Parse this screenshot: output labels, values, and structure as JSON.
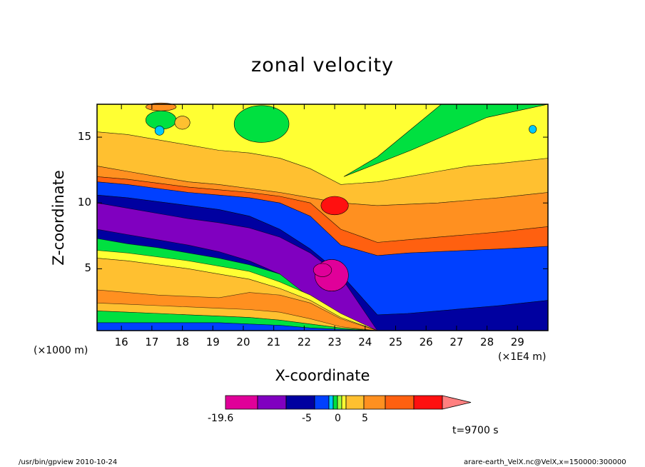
{
  "title": "zonal velocity",
  "xlabel": "X-coordinate",
  "ylabel": "Z-coordinate",
  "x_unit": "(×1E4 m)",
  "y_unit": "(×1000 m)",
  "time_label": "t=9700 s",
  "footer_left": "/usr/bin/gpview   2010-10-24",
  "footer_right": "arare-earth_VelX.nc@VelX,x=150000:300000",
  "colorbar": {
    "colors": [
      "#e00099",
      "#8000c0",
      "#0000a0",
      "#0040ff",
      "#00c8ff",
      "#00e040",
      "#a0ff40",
      "#ffff33",
      "#ffc030",
      "#ff9020",
      "#ff6010",
      "#ff1010",
      "#ff8080"
    ],
    "tick_labels": [
      "-19.6",
      "-5",
      "0",
      "5"
    ]
  },
  "chart_data": {
    "type": "heatmap",
    "title": "zonal velocity",
    "xlabel": "X-coordinate",
    "ylabel": "Z-coordinate",
    "x_unit": "×1E4 m",
    "y_unit": "×1000 m",
    "xlim": [
      15.2,
      30.0
    ],
    "ylim": [
      0.3,
      17.5
    ],
    "x_ticks": [
      16,
      17,
      18,
      19,
      20,
      21,
      22,
      23,
      24,
      25,
      26,
      27,
      28,
      29
    ],
    "y_ticks": [
      5,
      10,
      15
    ],
    "colorbar_ticks": [
      -19.6,
      -5,
      0,
      5
    ],
    "layers": [
      {
        "name": "upper-yellow",
        "color": "#ffff33",
        "top": [
          17.5,
          17.5,
          17.5,
          17.5,
          17.5,
          17.5,
          17.5,
          17.5,
          17.5,
          17.5,
          17.5,
          17.5,
          17.5,
          17.5,
          17.5,
          17.5
        ],
        "bottom": [
          15.4,
          15.2,
          14.8,
          14.4,
          14.0,
          13.8,
          13.4,
          12.6,
          11.4,
          11.6,
          12.0,
          12.4,
          12.8,
          13.0,
          13.2,
          13.4
        ]
      },
      {
        "name": "upper-orange",
        "color": "#ffc030",
        "top": [
          15.4,
          15.2,
          14.8,
          14.4,
          14.0,
          13.8,
          13.4,
          12.6,
          11.4,
          11.6,
          12.0,
          12.4,
          12.8,
          13.0,
          13.2,
          13.4
        ],
        "bottom": [
          12.8,
          12.4,
          12.0,
          11.6,
          11.4,
          11.1,
          10.8,
          10.4,
          10.0,
          9.8,
          9.9,
          10.0,
          10.2,
          10.4,
          10.6,
          10.8
        ]
      },
      {
        "name": "upper-dark-orange",
        "color": "#ff9020",
        "top": [
          12.8,
          12.4,
          12.0,
          11.6,
          11.4,
          11.1,
          10.8,
          10.4,
          10.0,
          9.8,
          9.9,
          10.0,
          10.2,
          10.4,
          10.6,
          10.8
        ],
        "bottom": [
          12.0,
          11.8,
          11.5,
          11.2,
          11.0,
          10.8,
          10.5,
          10.0,
          8.0,
          7.0,
          7.2,
          7.4,
          7.6,
          7.8,
          8.0,
          8.2
        ]
      },
      {
        "name": "upper-red-orange",
        "color": "#ff6010",
        "top": [
          12.0,
          11.8,
          11.5,
          11.2,
          11.0,
          10.8,
          10.5,
          10.0,
          8.0,
          7.0,
          7.2,
          7.4,
          7.6,
          7.8,
          8.0,
          8.2
        ],
        "bottom": [
          11.6,
          11.4,
          11.1,
          10.8,
          10.6,
          10.4,
          10.0,
          9.0,
          6.8,
          6.0,
          6.2,
          6.3,
          6.4,
          6.5,
          6.6,
          6.7
        ]
      },
      {
        "name": "blue-band",
        "color": "#0040ff",
        "top": [
          11.6,
          11.4,
          11.1,
          10.8,
          10.6,
          10.4,
          10.0,
          9.0,
          6.8,
          6.0,
          6.2,
          6.3,
          6.4,
          6.5,
          6.6,
          6.7
        ],
        "bottom": [
          10.6,
          10.4,
          10.1,
          9.8,
          9.5,
          9.0,
          8.0,
          6.5,
          4.6,
          1.5,
          1.6,
          1.8,
          2.0,
          2.2,
          2.4,
          2.6
        ]
      },
      {
        "name": "navy-band",
        "color": "#0000a0",
        "top": [
          10.6,
          10.4,
          10.1,
          9.8,
          9.5,
          9.0,
          8.0,
          6.5,
          4.6,
          1.5,
          1.6,
          1.8,
          2.0,
          2.2,
          2.4,
          2.6
        ],
        "bottom": [
          7.3,
          6.9,
          6.6,
          6.2,
          5.8,
          5.3,
          4.6,
          3.6,
          2.0,
          0.3,
          0.3,
          0.3,
          0.3,
          0.3,
          0.3,
          0.3
        ]
      },
      {
        "name": "purple-core",
        "color": "#8000c0",
        "top": [
          10.0,
          9.6,
          9.2,
          8.8,
          8.5,
          8.1,
          7.4,
          6.2,
          4.4,
          0.3,
          0.3,
          0.3,
          0.3,
          0.3,
          0.3,
          0.3
        ],
        "bottom": [
          8.0,
          7.6,
          7.2,
          6.8,
          6.3,
          5.6,
          4.6,
          2.8,
          1.2,
          0.3,
          0.3,
          0.3,
          0.3,
          0.3,
          0.3,
          0.3
        ]
      },
      {
        "name": "lower-yellow",
        "color": "#ffff33",
        "top": [
          6.4,
          6.2,
          5.9,
          5.6,
          5.2,
          4.8,
          4.0,
          3.0,
          1.6,
          0.3,
          0.3,
          0.3,
          0.3,
          0.3,
          0.3,
          0.3
        ],
        "bottom": [
          5.8,
          5.6,
          5.3,
          5.0,
          4.6,
          4.2,
          3.5,
          2.6,
          1.3,
          0.3,
          0.3,
          0.3,
          0.3,
          0.3,
          0.3,
          0.3
        ]
      },
      {
        "name": "lower-orange",
        "color": "#ffc030",
        "top": [
          5.8,
          5.6,
          5.3,
          5.0,
          4.6,
          4.2,
          3.5,
          2.6,
          1.3,
          0.3,
          0.3,
          0.3,
          0.3,
          0.3,
          0.3,
          0.3
        ],
        "bottom": [
          1.8,
          1.7,
          1.6,
          1.5,
          1.4,
          1.3,
          1.1,
          0.8,
          0.5,
          0.3,
          0.3,
          0.3,
          0.3,
          0.3,
          0.3,
          0.3
        ]
      },
      {
        "name": "lower-dark-orange",
        "color": "#ff9020",
        "top": [
          3.4,
          3.2,
          3.0,
          2.9,
          2.8,
          3.2,
          3.0,
          2.4,
          1.2,
          0.3,
          0.3,
          0.3,
          0.3,
          0.3,
          0.3,
          0.3
        ],
        "bottom": [
          2.4,
          2.3,
          2.2,
          2.1,
          2.0,
          1.9,
          1.7,
          1.2,
          0.6,
          0.3,
          0.3,
          0.3,
          0.3,
          0.3,
          0.3,
          0.3
        ]
      },
      {
        "name": "surface-green",
        "color": "#00e040",
        "top": [
          1.8,
          1.7,
          1.6,
          1.5,
          1.4,
          1.3,
          1.1,
          0.8,
          0.5,
          0.3,
          0.3,
          0.3,
          0.3,
          0.3,
          0.3,
          0.3
        ],
        "bottom": [
          0.9,
          0.9,
          0.9,
          0.9,
          0.9,
          0.8,
          0.7,
          0.5,
          0.4,
          0.3,
          0.3,
          0.3,
          0.3,
          0.3,
          0.3,
          0.3
        ]
      },
      {
        "name": "surface-blue",
        "color": "#0040ff",
        "top": [
          0.9,
          0.9,
          0.9,
          0.9,
          0.9,
          0.8,
          0.7,
          0.5,
          0.4,
          0.3,
          0.3,
          0.3,
          0.3,
          0.3,
          0.3,
          0.3
        ],
        "bottom": [
          0.3,
          0.3,
          0.3,
          0.3,
          0.3,
          0.3,
          0.3,
          0.3,
          0.3,
          0.3,
          0.3,
          0.3,
          0.3,
          0.3,
          0.3,
          0.3
        ]
      }
    ],
    "layer_x": [
      15.2,
      16.2,
      17.2,
      18.2,
      19.2,
      20.2,
      21.2,
      22.2,
      23.2,
      24.4,
      25.4,
      26.4,
      27.4,
      28.4,
      29.2,
      30.0
    ]
  }
}
